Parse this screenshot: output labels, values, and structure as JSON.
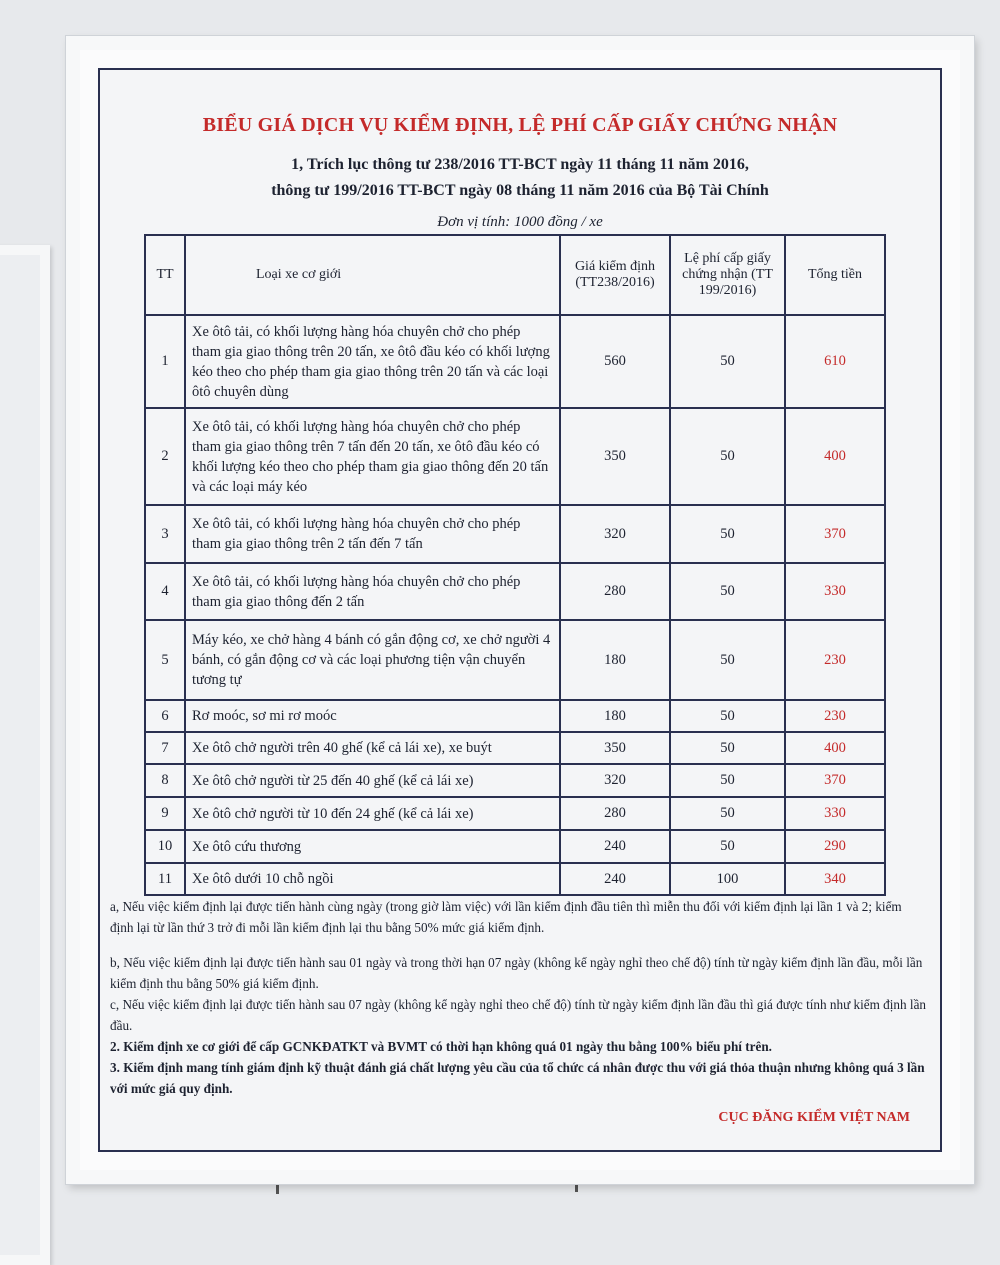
{
  "poster": {
    "title": "BIỂU GIÁ DỊCH VỤ KIỂM ĐỊNH, LỆ PHÍ CẤP GIẤY CHỨNG NHẬN",
    "subtitle_line1": "1, Trích lục thông tư 238/2016 TT-BCT ngày 11 tháng 11 năm 2016,",
    "subtitle_line2": "thông tư 199/2016 TT-BCT ngày 08 tháng 11 năm 2016 của Bộ Tài Chính",
    "unit": "Đơn vị tính: 1000 đồng / xe",
    "accent_color": "#c42a2a",
    "table": {
      "headers": [
        "TT",
        "Loại xe cơ giới",
        "Giá kiểm định (TT238/2016)",
        "Lệ phí cấp giấy chứng nhận (TT 199/2016)",
        "Tổng tiền"
      ],
      "rows": [
        {
          "tt": "1",
          "type": "Xe ôtô tải, có khối lượng hàng hóa chuyên chở cho phép tham gia giao thông trên 20 tấn, xe ôtô đầu kéo có khối lượng kéo theo cho phép tham gia giao thông trên 20 tấn và các loại ôtô chuyên dùng",
          "price": "560",
          "fee": "50",
          "total": "610"
        },
        {
          "tt": "2",
          "type": "Xe ôtô tải, có khối lượng hàng hóa chuyên chở cho phép tham gia giao thông trên 7 tấn đến 20 tấn, xe ôtô đầu kéo có khối lượng kéo theo cho phép tham gia giao thông đến 20 tấn và các loại máy kéo",
          "price": "350",
          "fee": "50",
          "total": "400"
        },
        {
          "tt": "3",
          "type": "Xe ôtô tải, có khối lượng hàng hóa chuyên chở cho phép tham gia giao thông trên 2 tấn đến 7 tấn",
          "price": "320",
          "fee": "50",
          "total": "370"
        },
        {
          "tt": "4",
          "type": "Xe ôtô tải, có khối lượng hàng hóa chuyên chở cho phép tham gia giao thông đến 2 tấn",
          "price": "280",
          "fee": "50",
          "total": "330"
        },
        {
          "tt": "5",
          "type": "Máy kéo, xe chở hàng 4 bánh có gắn động cơ, xe chở người 4 bánh, có gắn động cơ và các loại phương tiện vận chuyển tương tự",
          "price": "180",
          "fee": "50",
          "total": "230"
        },
        {
          "tt": "6",
          "type": "Rơ moóc, sơ mi rơ moóc",
          "price": "180",
          "fee": "50",
          "total": "230"
        },
        {
          "tt": "7",
          "type": "Xe ôtô chở người trên 40 ghế (kể cả lái xe), xe buýt",
          "price": "350",
          "fee": "50",
          "total": "400"
        },
        {
          "tt": "8",
          "type": "Xe ôtô chở người từ 25 đến 40 ghế (kể cả lái xe)",
          "price": "320",
          "fee": "50",
          "total": "370"
        },
        {
          "tt": "9",
          "type": "Xe ôtô chở người từ 10 đến 24 ghế (kể cả lái xe)",
          "price": "280",
          "fee": "50",
          "total": "330"
        },
        {
          "tt": "10",
          "type": "Xe ôtô cứu thương",
          "price": "240",
          "fee": "50",
          "total": "290"
        },
        {
          "tt": "11",
          "type": "Xe ôtô dưới 10 chỗ ngồi",
          "price": "240",
          "fee": "100",
          "total": "340"
        }
      ]
    },
    "notes": {
      "a": "a, Nếu việc kiểm định lại được tiến hành cùng ngày (trong giờ làm việc) với lần kiểm định đầu tiên thì miễn thu đối với kiểm định lại lần 1 và 2; kiểm định lại từ lần thứ 3 trở đi mỗi lần kiểm định lại thu bằng 50% mức giá kiểm định.",
      "b": "b, Nếu việc kiểm định lại được tiến hành sau 01 ngày và trong thời hạn 07 ngày (không kể ngày nghỉ theo chế độ) tính từ ngày kiểm định lần đầu, mỗi lần kiểm định thu bằng 50% giá kiểm định.",
      "c": "c, Nếu việc kiểm định lại được tiến hành sau 07 ngày (không kể ngày nghỉ theo chế độ) tính từ ngày kiểm định lần đầu thì giá được tính như kiểm định lần đầu.",
      "n2": "2. Kiểm định xe cơ giới để cấp GCNKĐATKT và BVMT có thời hạn không quá 01 ngày thu bằng 100% biểu phí trên.",
      "n3": "3. Kiểm định mang tính giám định kỹ thuật đánh giá chất lượng yêu cầu của tổ chức cá nhân được thu với giá thỏa thuận nhưng không quá 3 lần với mức giá quy định."
    },
    "signature": "CỤC ĐĂNG KIỂM VIỆT NAM"
  }
}
